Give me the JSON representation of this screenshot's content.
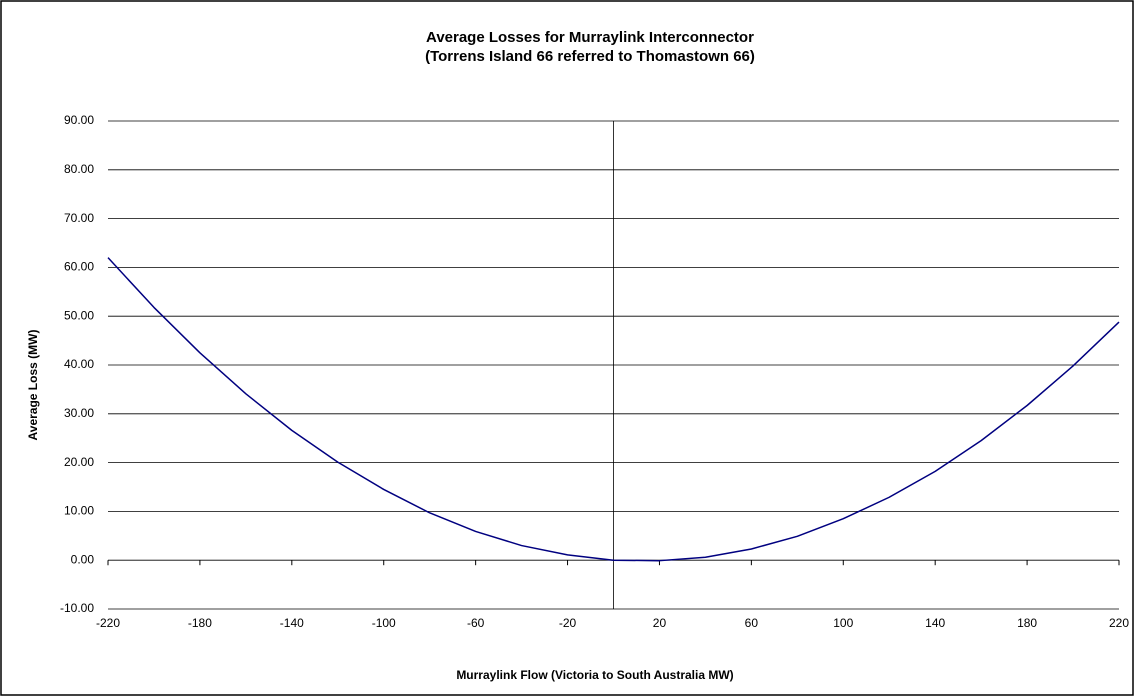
{
  "chart_data": {
    "type": "line",
    "title": "Average Losses for Murraylink Interconnector",
    "subtitle": "(Torrens Island 66 referred to Thomastown  66)",
    "x_label": "Murraylink Flow (Victoria to South Australia MW)",
    "y_label": "Average Loss (MW)",
    "x": [
      -220,
      -200,
      -180,
      -160,
      -140,
      -120,
      -100,
      -80,
      -60,
      -40,
      -20,
      0,
      20,
      40,
      60,
      80,
      100,
      120,
      140,
      160,
      180,
      200,
      220
    ],
    "series": [
      {
        "name": "Average Loss",
        "color": "#000080",
        "values": [
          62.0,
          51.8,
          42.5,
          34.1,
          26.6,
          20.1,
          14.5,
          9.7,
          5.9,
          3.0,
          1.1,
          0,
          -0.1,
          0.6,
          2.3,
          4.9,
          8.5,
          12.9,
          18.2,
          24.5,
          31.7,
          39.8,
          48.8
        ]
      }
    ],
    "xlim": [
      -220,
      220
    ],
    "xticks": [
      -220,
      -180,
      -140,
      -100,
      -60,
      -20,
      20,
      60,
      100,
      140,
      180,
      220
    ],
    "ylim": [
      -10,
      90
    ],
    "yticks": [
      {
        "value": -10,
        "label": "-10.00"
      },
      {
        "value": 0,
        "label": "0.00"
      },
      {
        "value": 10,
        "label": "10.00"
      },
      {
        "value": 20,
        "label": "20.00"
      },
      {
        "value": 30,
        "label": "30.00"
      },
      {
        "value": 40,
        "label": "40.00"
      },
      {
        "value": 50,
        "label": "50.00"
      },
      {
        "value": 60,
        "label": "60.00"
      },
      {
        "value": 70,
        "label": "70.00"
      },
      {
        "value": 80,
        "label": "80.00"
      },
      {
        "value": 90,
        "label": "90.00"
      }
    ],
    "grid": true
  }
}
